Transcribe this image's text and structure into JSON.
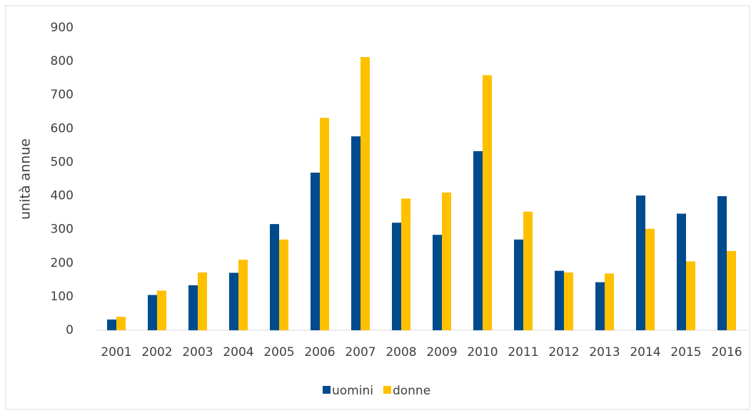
{
  "chart_data": {
    "type": "bar",
    "y_label": "unità annue",
    "categories": [
      "2001",
      "2002",
      "2003",
      "2004",
      "2005",
      "2006",
      "2007",
      "2008",
      "2009",
      "2010",
      "2011",
      "2012",
      "2013",
      "2014",
      "2015",
      "2016"
    ],
    "series": [
      {
        "name": "uomini",
        "color": "#004b8d",
        "values": [
          32,
          105,
          134,
          171,
          316,
          469,
          577,
          320,
          284,
          533,
          270,
          177,
          143,
          401,
          347,
          399
        ]
      },
      {
        "name": "donne",
        "color": "#ffc000",
        "values": [
          40,
          118,
          172,
          210,
          270,
          632,
          813,
          392,
          410,
          759,
          353,
          172,
          169,
          302,
          205,
          236
        ]
      }
    ],
    "ylim": [
      0,
      900
    ],
    "yticks": [
      0,
      100,
      200,
      300,
      400,
      500,
      600,
      700,
      800,
      900
    ],
    "grid": false,
    "legend": "bottom"
  }
}
